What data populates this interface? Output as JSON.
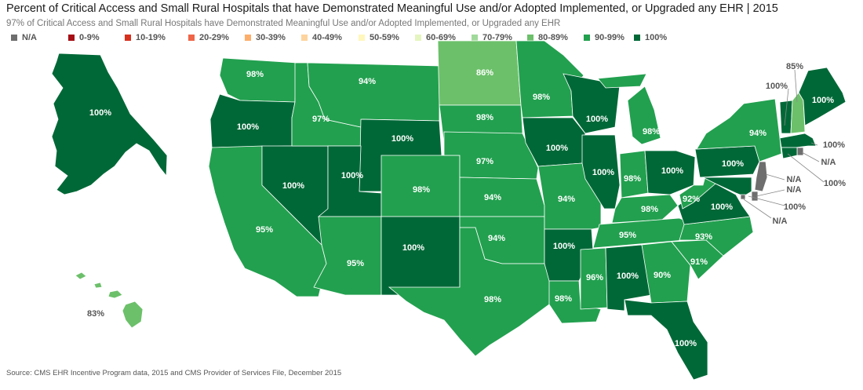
{
  "title": "Percent of Critical Access and Small Rural Hospitals that have Demonstrated Meaningful Use and/or Adopted Implemented, or Upgraded any EHR | 2015",
  "subtitle": "97% of Critical Access and Small Rural Hospitals have Demonstrated Meaningful Use and/or Adopted Implemented, or Upgraded any EHR",
  "source": "Source: CMS EHR Incentive Program data, 2015 and CMS Provider of Services File, December 2015",
  "legend": [
    {
      "label": "N/A",
      "color": "#6e6e6e"
    },
    {
      "label": "0-9%",
      "color": "#a50f15"
    },
    {
      "label": "10-19%",
      "color": "#d7301f"
    },
    {
      "label": "20-29%",
      "color": "#ef6548"
    },
    {
      "label": "30-39%",
      "color": "#fdae6b"
    },
    {
      "label": "40-49%",
      "color": "#fdd49e"
    },
    {
      "label": "50-59%",
      "color": "#fff7bc"
    },
    {
      "label": "60-69%",
      "color": "#e5f5c0"
    },
    {
      "label": "70-79%",
      "color": "#a1d99b"
    },
    {
      "label": "80-89%",
      "color": "#6cc06a"
    },
    {
      "label": "90-99%",
      "color": "#22a04f"
    },
    {
      "label": "100%",
      "color": "#006837"
    }
  ],
  "states": [
    {
      "state": "Alaska",
      "label": "100%",
      "bin": "100%"
    },
    {
      "state": "Hawaii",
      "label": "83%",
      "bin": "80-89%"
    },
    {
      "state": "Washington",
      "label": "98%",
      "bin": "90-99%"
    },
    {
      "state": "Oregon",
      "label": "100%",
      "bin": "100%"
    },
    {
      "state": "California",
      "label": "95%",
      "bin": "90-99%"
    },
    {
      "state": "Nevada",
      "label": "100%",
      "bin": "100%"
    },
    {
      "state": "Idaho",
      "label": "97%",
      "bin": "90-99%"
    },
    {
      "state": "Montana",
      "label": "94%",
      "bin": "90-99%"
    },
    {
      "state": "Wyoming",
      "label": "100%",
      "bin": "100%"
    },
    {
      "state": "Utah",
      "label": "100%",
      "bin": "100%"
    },
    {
      "state": "Arizona",
      "label": "95%",
      "bin": "90-99%"
    },
    {
      "state": "Colorado",
      "label": "98%",
      "bin": "90-99%"
    },
    {
      "state": "New Mexico",
      "label": "100%",
      "bin": "100%"
    },
    {
      "state": "North Dakota",
      "label": "86%",
      "bin": "80-89%"
    },
    {
      "state": "South Dakota",
      "label": "98%",
      "bin": "90-99%"
    },
    {
      "state": "Nebraska",
      "label": "97%",
      "bin": "90-99%"
    },
    {
      "state": "Kansas",
      "label": "94%",
      "bin": "90-99%"
    },
    {
      "state": "Oklahoma",
      "label": "94%",
      "bin": "90-99%"
    },
    {
      "state": "Texas",
      "label": "98%",
      "bin": "90-99%"
    },
    {
      "state": "Minnesota",
      "label": "98%",
      "bin": "90-99%"
    },
    {
      "state": "Iowa",
      "label": "100%",
      "bin": "100%"
    },
    {
      "state": "Missouri",
      "label": "94%",
      "bin": "90-99%"
    },
    {
      "state": "Arkansas",
      "label": "100%",
      "bin": "100%"
    },
    {
      "state": "Louisiana",
      "label": "98%",
      "bin": "90-99%"
    },
    {
      "state": "Wisconsin",
      "label": "100%",
      "bin": "100%"
    },
    {
      "state": "Illinois",
      "label": "100%",
      "bin": "100%"
    },
    {
      "state": "Michigan",
      "label": "98%",
      "bin": "90-99%"
    },
    {
      "state": "Indiana",
      "label": "98%",
      "bin": "90-99%"
    },
    {
      "state": "Ohio",
      "label": "100%",
      "bin": "100%"
    },
    {
      "state": "Kentucky",
      "label": "98%",
      "bin": "90-99%"
    },
    {
      "state": "Tennessee",
      "label": "95%",
      "bin": "90-99%"
    },
    {
      "state": "Mississippi",
      "label": "96%",
      "bin": "90-99%"
    },
    {
      "state": "Alabama",
      "label": "100%",
      "bin": "100%"
    },
    {
      "state": "Georgia",
      "label": "90%",
      "bin": "90-99%"
    },
    {
      "state": "Florida",
      "label": "100%",
      "bin": "100%"
    },
    {
      "state": "South Carolina",
      "label": "91%",
      "bin": "90-99%"
    },
    {
      "state": "North Carolina",
      "label": "93%",
      "bin": "90-99%"
    },
    {
      "state": "Virginia",
      "label": "100%",
      "bin": "100%"
    },
    {
      "state": "West Virginia",
      "label": "92%",
      "bin": "90-99%"
    },
    {
      "state": "Pennsylvania",
      "label": "100%",
      "bin": "100%"
    },
    {
      "state": "New York",
      "label": "94%",
      "bin": "90-99%"
    },
    {
      "state": "Vermont",
      "label": "100%",
      "bin": "100%"
    },
    {
      "state": "New Hampshire",
      "label": "85%",
      "bin": "80-89%"
    },
    {
      "state": "Maine",
      "label": "100%",
      "bin": "100%"
    },
    {
      "state": "Massachusetts",
      "label": "100%",
      "bin": "100%"
    },
    {
      "state": "Rhode Island",
      "label": "N/A",
      "bin": "N/A"
    },
    {
      "state": "Connecticut",
      "label": "100%",
      "bin": "100%"
    },
    {
      "state": "New Jersey",
      "label": "N/A",
      "bin": "N/A"
    },
    {
      "state": "Delaware",
      "label": "N/A",
      "bin": "N/A"
    },
    {
      "state": "Maryland",
      "label": "100%",
      "bin": "100%"
    },
    {
      "state": "District of Columbia",
      "label": "N/A",
      "bin": "N/A"
    }
  ]
}
